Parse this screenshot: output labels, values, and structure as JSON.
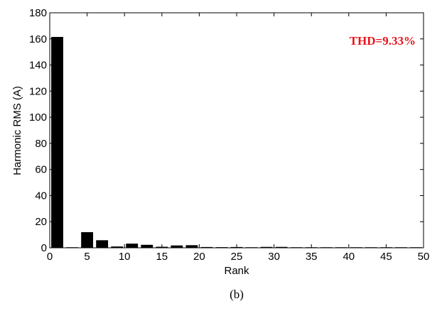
{
  "chart_data": {
    "type": "bar",
    "title": "",
    "xlabel": "Rank",
    "ylabel": "Harmonic RMS (A)",
    "xlim": [
      0,
      50
    ],
    "ylim": [
      0,
      180
    ],
    "xticks": [
      0,
      5,
      10,
      15,
      20,
      25,
      30,
      35,
      40,
      45,
      50
    ],
    "yticks": [
      0,
      20,
      40,
      60,
      80,
      100,
      120,
      140,
      160,
      180
    ],
    "grid": false,
    "legend": "none",
    "bar_color": "#000000",
    "x": [
      1,
      3,
      5,
      7,
      9,
      11,
      13,
      15,
      17,
      19,
      21,
      23,
      25,
      27,
      29,
      31,
      33,
      35,
      37,
      39,
      41,
      43,
      45,
      47,
      49
    ],
    "values": [
      161.5,
      0.3,
      12.0,
      5.8,
      1.0,
      3.2,
      2.3,
      0.8,
      1.8,
      2.0,
      0.6,
      0.5,
      0.6,
      0.3,
      0.7,
      0.7,
      0.4,
      0.4,
      0.2,
      0.3,
      0.3,
      0.3,
      0.3,
      0.3,
      0.3
    ],
    "annotation": {
      "text": "THD=9.33%",
      "color": "#e8141c",
      "position": "top-right"
    }
  },
  "caption": "(b)"
}
